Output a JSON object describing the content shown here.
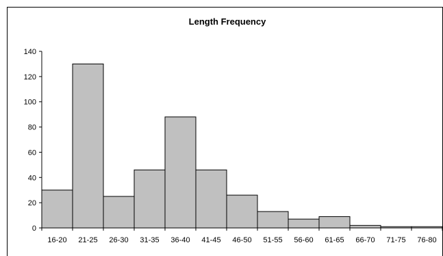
{
  "chart_data": {
    "type": "bar",
    "title": "Length Frequency",
    "xlabel": "",
    "ylabel": "",
    "categories": [
      "16-20",
      "21-25",
      "26-30",
      "31-35",
      "36-40",
      "41-45",
      "46-50",
      "51-55",
      "56-60",
      "61-65",
      "66-70",
      "71-75",
      "76-80"
    ],
    "values": [
      30,
      130,
      25,
      46,
      88,
      46,
      26,
      13,
      7,
      9,
      2,
      1,
      1
    ],
    "ylim": [
      0,
      140
    ],
    "yticks": [
      0,
      20,
      40,
      60,
      80,
      100,
      120,
      140
    ],
    "grid": false,
    "legend": "none",
    "bar_color": "#c0c0c0",
    "bar_edge_color": "#000000"
  }
}
